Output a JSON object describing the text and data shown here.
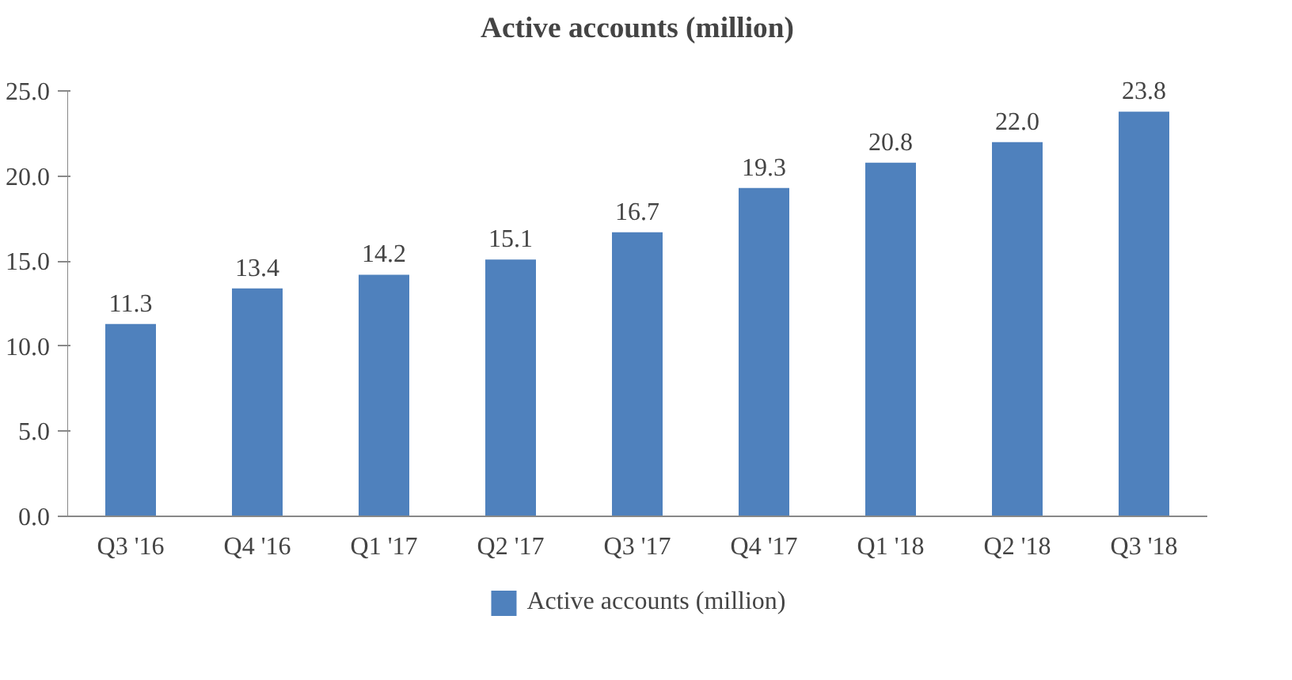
{
  "chart_data": {
    "type": "bar",
    "title": "Active accounts (million)",
    "categories": [
      "Q3 '16",
      "Q4 '16",
      "Q1 '17",
      "Q2 '17",
      "Q3 '17",
      "Q4 '17",
      "Q1 '18",
      "Q2 '18",
      "Q3 '18"
    ],
    "series": [
      {
        "name": "Active accounts (million)",
        "color": "#4f81bd",
        "values": [
          11.3,
          13.4,
          14.2,
          15.1,
          16.7,
          19.3,
          20.8,
          22.0,
          23.8
        ],
        "value_labels": [
          "11.3",
          "13.4",
          "14.2",
          "15.1",
          "16.7",
          "19.3",
          "20.8",
          "22.0",
          "23.8"
        ]
      }
    ],
    "ylim": [
      0,
      25
    ],
    "yticks": [
      {
        "value": 0,
        "label": "0.0"
      },
      {
        "value": 5,
        "label": "5.0"
      },
      {
        "value": 10,
        "label": "10.0"
      },
      {
        "value": 15,
        "label": "15.0"
      },
      {
        "value": 20,
        "label": "20.0"
      },
      {
        "value": 25,
        "label": "25.0"
      }
    ],
    "grid": false,
    "legend": "bottom"
  }
}
